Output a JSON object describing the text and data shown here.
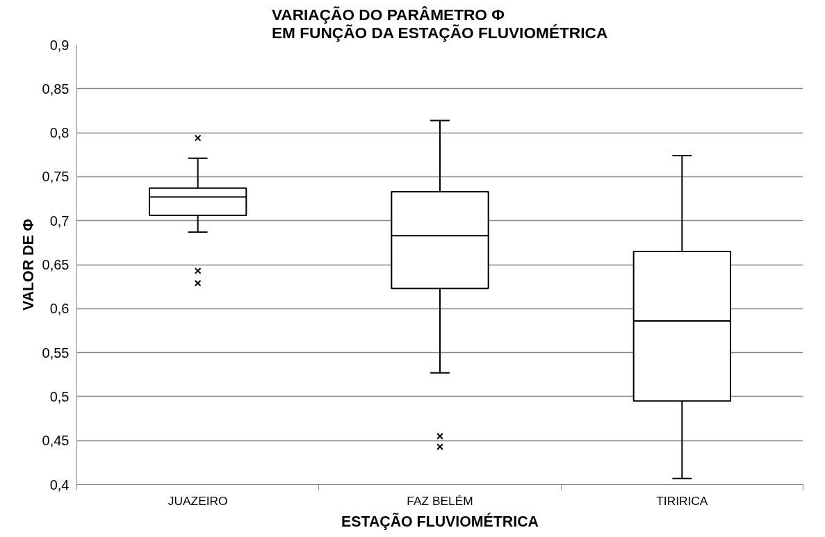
{
  "chart_data": {
    "type": "box",
    "title": "VARIAÇÃO DO PARÂMETRO Φ\nEM FUNÇÃO DA ESTAÇÃO FLUVIOMÉTRICA",
    "xlabel": "ESTAÇÃO FLUVIOMÉTRICA",
    "ylabel": "VALOR DE Φ",
    "categories": [
      "JUAZEIRO",
      "FAZ BELÉM",
      "TIRIRICA"
    ],
    "boxes": [
      {
        "low": 0.687,
        "q1": 0.706,
        "median": 0.727,
        "q3": 0.737,
        "high": 0.771,
        "outliers": [
          0.794,
          0.643,
          0.629
        ]
      },
      {
        "low": 0.527,
        "q1": 0.623,
        "median": 0.683,
        "q3": 0.733,
        "high": 0.814,
        "outliers": [
          0.455,
          0.443
        ]
      },
      {
        "low": 0.407,
        "q1": 0.495,
        "median": 0.586,
        "q3": 0.665,
        "high": 0.774
      }
    ],
    "color": "#ffffff",
    "marker": "cross",
    "grid": "y",
    "ylim": [
      0.4,
      0.9
    ],
    "yticks": [
      {
        "value": 0.4,
        "label": "0,4"
      },
      {
        "value": 0.45,
        "label": "0,45"
      },
      {
        "value": 0.5,
        "label": "0,5"
      },
      {
        "value": 0.55,
        "label": "0,55"
      },
      {
        "value": 0.6,
        "label": "0,6"
      },
      {
        "value": 0.65,
        "label": "0,65"
      },
      {
        "value": 0.7,
        "label": "0,7"
      },
      {
        "value": 0.75,
        "label": "0,75"
      },
      {
        "value": 0.8,
        "label": "0,8"
      },
      {
        "value": 0.85,
        "label": "0,85"
      },
      {
        "value": 0.9,
        "label": "0,9"
      }
    ]
  }
}
